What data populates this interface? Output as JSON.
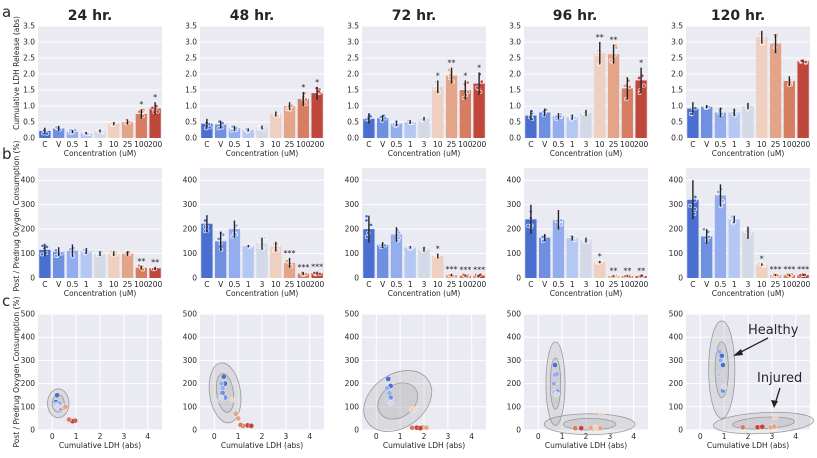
{
  "figure": {
    "panel_labels": [
      "a",
      "b",
      "c"
    ],
    "time_titles": [
      "24 hr.",
      "48 hr.",
      "72 hr.",
      "96 hr.",
      "120 hr."
    ],
    "annotations": {
      "healthy": "Healthy",
      "injured": "Injured"
    }
  },
  "colors": {
    "C": "#4a6fd0",
    "V": "#6f8fe0",
    "0.5": "#93adef",
    "1": "#b5c7f3",
    "3": "#d3d9e6",
    "10": "#eecfc0",
    "25": "#e4a488",
    "100": "#d77e62",
    "200": "#c0473c"
  },
  "chart_data": [
    {
      "type": "bar",
      "row": "a",
      "ylabel": "Cumulative LDH Release (abs)",
      "xlabel": "Concentration (uM)",
      "categories": [
        "C",
        "V",
        "0.5",
        "1",
        "3",
        "10",
        "25",
        "100",
        "200"
      ],
      "ylim": [
        0,
        3.5
      ],
      "yticks": [
        "0.0",
        "0.5",
        "1.0",
        "1.5",
        "2.0",
        "2.5",
        "3.0",
        "3.5"
      ],
      "series": [
        {
          "name": "24 hr.",
          "values": [
            0.22,
            0.3,
            0.2,
            0.15,
            0.22,
            0.45,
            0.5,
            0.75,
            0.92
          ],
          "err": [
            0.1,
            0.08,
            0.05,
            0.04,
            0.05,
            0.05,
            0.08,
            0.15,
            0.2
          ],
          "sig": [
            "",
            "",
            "",
            "",
            "",
            "",
            "",
            "*",
            "*"
          ]
        },
        {
          "name": "48 hr.",
          "values": [
            0.45,
            0.42,
            0.3,
            0.25,
            0.33,
            0.75,
            1.0,
            1.22,
            1.4
          ],
          "err": [
            0.15,
            0.12,
            0.08,
            0.05,
            0.06,
            0.08,
            0.12,
            0.22,
            0.2
          ],
          "sig": [
            "",
            "",
            "",
            "",
            "",
            "",
            "",
            "*",
            "*"
          ]
        },
        {
          "name": "72 hr.",
          "values": [
            0.6,
            0.62,
            0.45,
            0.5,
            0.6,
            1.6,
            1.95,
            1.5,
            1.7
          ],
          "err": [
            0.15,
            0.1,
            0.08,
            0.06,
            0.06,
            0.2,
            0.25,
            0.3,
            0.35
          ],
          "sig": [
            "",
            "",
            "",
            "",
            "",
            "*",
            "**",
            "*",
            "*"
          ]
        },
        {
          "name": "96 hr.",
          "values": [
            0.7,
            0.8,
            0.68,
            0.65,
            0.78,
            2.65,
            2.62,
            1.55,
            1.8
          ],
          "err": [
            0.15,
            0.12,
            0.1,
            0.08,
            0.1,
            0.35,
            0.3,
            0.35,
            0.4
          ],
          "sig": [
            "",
            "",
            "",
            "",
            "",
            "**",
            "**",
            "",
            "*"
          ]
        },
        {
          "name": "120 hr.",
          "values": [
            0.92,
            0.98,
            0.8,
            0.8,
            1.0,
            3.15,
            2.95,
            1.78,
            2.4
          ],
          "err": [
            0.2,
            0.05,
            0.15,
            0.12,
            0.1,
            0.2,
            0.3,
            0.15,
            0.05
          ],
          "sig": [
            "",
            "",
            "",
            "",
            "",
            "",
            "",
            "",
            ""
          ]
        }
      ]
    },
    {
      "type": "bar",
      "row": "b",
      "ylabel": "Post / Predrug Oxygen Consumption (%)",
      "xlabel": "Concentration (uM)",
      "categories": [
        "C",
        "V",
        "0.5",
        "1",
        "3",
        "10",
        "25",
        "100",
        "200"
      ],
      "ylim": [
        0,
        450
      ],
      "yticks": [
        "0",
        "100",
        "200",
        "300",
        "400"
      ],
      "series": [
        {
          "name": "24 hr.",
          "values": [
            115,
            108,
            112,
            110,
            100,
            100,
            100,
            42,
            40
          ],
          "err": [
            25,
            18,
            25,
            12,
            10,
            10,
            10,
            8,
            6
          ],
          "sig": [
            "",
            "",
            "",
            "",
            "",
            "",
            "",
            "**",
            "**"
          ]
        },
        {
          "name": "48 hr.",
          "values": [
            222,
            150,
            200,
            130,
            140,
            128,
            62,
            18,
            20
          ],
          "err": [
            35,
            40,
            35,
            5,
            25,
            20,
            20,
            6,
            6
          ],
          "sig": [
            "",
            "",
            "",
            "",
            "",
            "",
            "***",
            "***",
            "***"
          ]
        },
        {
          "name": "72 hr.",
          "values": [
            200,
            135,
            178,
            125,
            118,
            90,
            12,
            10,
            10
          ],
          "err": [
            55,
            12,
            30,
            5,
            10,
            10,
            5,
            4,
            4
          ],
          "sig": [
            "",
            "",
            "",
            "",
            "",
            "*",
            "***",
            "***",
            "***"
          ]
        },
        {
          "name": "96 hr.",
          "values": [
            240,
            165,
            238,
            163,
            155,
            65,
            8,
            8,
            8
          ],
          "err": [
            60,
            15,
            40,
            10,
            10,
            5,
            3,
            3,
            3
          ],
          "sig": [
            "",
            "",
            "",
            "",
            "",
            "*",
            "**",
            "**",
            "**"
          ]
        },
        {
          "name": "120 hr.",
          "values": [
            320,
            170,
            338,
            240,
            185,
            55,
            12,
            12,
            12
          ],
          "err": [
            80,
            30,
            45,
            15,
            25,
            5,
            4,
            4,
            4
          ],
          "sig": [
            "",
            "",
            "",
            "",
            "",
            "*",
            "***",
            "***",
            "***"
          ]
        }
      ]
    },
    {
      "type": "scatter",
      "row": "c",
      "ylabel": "Post / Predrug Oxygen Consumption (%)",
      "xlabel": "Cumulative LDH (abs)",
      "xlim": [
        -0.6,
        4.6
      ],
      "ylim": [
        0,
        500
      ],
      "xticks": [
        "0",
        "1",
        "2",
        "3",
        "4"
      ],
      "yticks": [
        "0",
        "100",
        "200",
        "300",
        "400",
        "500"
      ],
      "series": [
        {
          "name": "24 hr.",
          "points": [
            [
              0.2,
              150,
              "C"
            ],
            [
              0.15,
              120,
              "C"
            ],
            [
              0.3,
              110,
              "V"
            ],
            [
              0.35,
              95,
              "V"
            ],
            [
              0.2,
              105,
              "0.5"
            ],
            [
              0.3,
              115,
              "0.5"
            ],
            [
              0.15,
              110,
              "1"
            ],
            [
              0.22,
              100,
              "3"
            ],
            [
              0.45,
              100,
              "10"
            ],
            [
              0.5,
              95,
              "25"
            ],
            [
              0.75,
              42,
              "100"
            ],
            [
              0.95,
              40,
              "200"
            ],
            [
              0.85,
              38,
              "200"
            ],
            [
              0.7,
              45,
              "100"
            ],
            [
              0.55,
              100,
              "25"
            ]
          ],
          "ellipses": [
            [
              0.25,
              115,
              0.25,
              38,
              0
            ],
            [
              0.25,
              115,
              0.45,
              62,
              0
            ]
          ]
        },
        {
          "name": "48 hr.",
          "points": [
            [
              0.4,
              230,
              "C"
            ],
            [
              0.45,
              200,
              "C"
            ],
            [
              0.35,
              160,
              "V"
            ],
            [
              0.45,
              140,
              "V"
            ],
            [
              0.3,
              200,
              "0.5"
            ],
            [
              0.35,
              180,
              "0.5"
            ],
            [
              0.25,
              130,
              "1"
            ],
            [
              0.3,
              140,
              "3"
            ],
            [
              0.75,
              130,
              "10"
            ],
            [
              0.9,
              70,
              "25"
            ],
            [
              1.0,
              50,
              "25"
            ],
            [
              1.2,
              18,
              "100"
            ],
            [
              1.4,
              20,
              "200"
            ],
            [
              1.55,
              18,
              "200"
            ],
            [
              1.1,
              22,
              "100"
            ]
          ],
          "ellipses": [
            [
              0.45,
              160,
              0.35,
              85,
              -8
            ],
            [
              0.45,
              160,
              0.65,
              130,
              -8
            ]
          ]
        },
        {
          "name": "72 hr.",
          "points": [
            [
              0.5,
              220,
              "C"
            ],
            [
              0.6,
              190,
              "C"
            ],
            [
              0.6,
              140,
              "V"
            ],
            [
              0.45,
              180,
              "0.5"
            ],
            [
              0.55,
              160,
              "0.5"
            ],
            [
              0.5,
              125,
              "1"
            ],
            [
              0.6,
              118,
              "3"
            ],
            [
              1.6,
              90,
              "10"
            ],
            [
              1.5,
              85,
              "10"
            ],
            [
              1.95,
              12,
              "25"
            ],
            [
              2.1,
              10,
              "25"
            ],
            [
              1.5,
              10,
              "100"
            ],
            [
              1.7,
              10,
              "200"
            ],
            [
              1.85,
              8,
              "200"
            ]
          ],
          "ellipses": [
            [
              0.9,
              125,
              0.9,
              70,
              -35
            ],
            [
              0.9,
              125,
              1.55,
              115,
              -35
            ]
          ]
        },
        {
          "name": "96 hr.",
          "points": [
            [
              0.7,
              280,
              "C"
            ],
            [
              0.75,
              240,
              "C"
            ],
            [
              0.8,
              165,
              "V"
            ],
            [
              0.7,
              238,
              "0.5"
            ],
            [
              0.65,
              200,
              "0.5"
            ],
            [
              0.65,
              163,
              "1"
            ],
            [
              0.78,
              155,
              "3"
            ],
            [
              2.65,
              65,
              "10"
            ],
            [
              2.6,
              8,
              "25"
            ],
            [
              2.2,
              10,
              "25"
            ],
            [
              1.55,
              8,
              "100"
            ],
            [
              1.8,
              8,
              "200"
            ],
            [
              2.4,
              10,
              "10"
            ]
          ],
          "ellipses": [
            [
              0.72,
              200,
              0.22,
              110,
              0
            ],
            [
              0.72,
              200,
              0.4,
              180,
              0
            ],
            [
              2.15,
              25,
              1.1,
              25,
              0
            ],
            [
              2.15,
              25,
              1.9,
              45,
              0
            ]
          ]
        },
        {
          "name": "120 hr.",
          "points": [
            [
              0.9,
              320,
              "C"
            ],
            [
              0.95,
              280,
              "C"
            ],
            [
              0.95,
              170,
              "V"
            ],
            [
              0.8,
              338,
              "0.5"
            ],
            [
              0.85,
              300,
              "0.5"
            ],
            [
              0.8,
              240,
              "1"
            ],
            [
              1.0,
              185,
              "3"
            ],
            [
              3.15,
              55,
              "10"
            ],
            [
              2.95,
              12,
              "25"
            ],
            [
              3.1,
              15,
              "25"
            ],
            [
              1.78,
              12,
              "100"
            ],
            [
              2.4,
              12,
              "200"
            ],
            [
              2.6,
              14,
              "200"
            ]
          ],
          "ellipses": [
            [
              0.9,
              260,
              0.28,
              120,
              0
            ],
            [
              0.9,
              260,
              0.55,
              210,
              0
            ],
            [
              2.65,
              30,
              1.3,
              25,
              -3
            ],
            [
              2.65,
              30,
              2.1,
              45,
              -3
            ]
          ]
        }
      ]
    }
  ]
}
